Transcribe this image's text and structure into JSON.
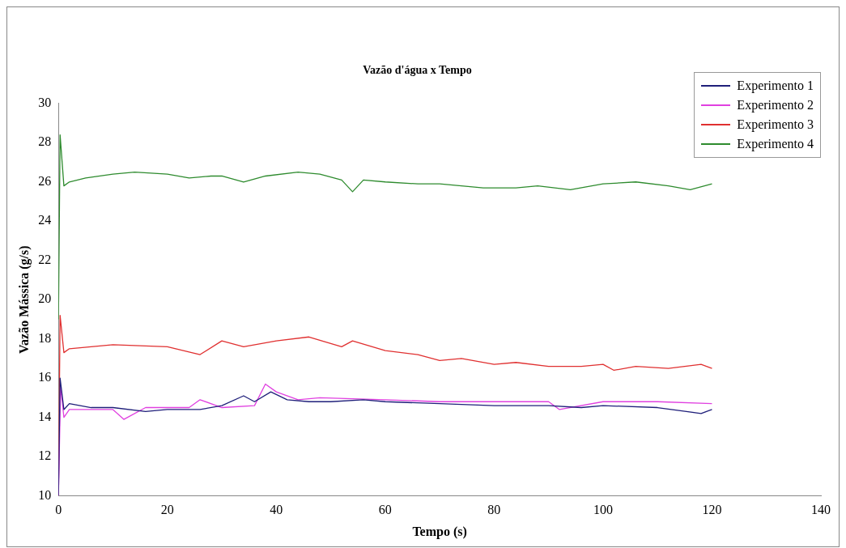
{
  "chart_data": {
    "type": "line",
    "title": "Vazão d'água x Tempo",
    "xlabel": "Tempo (s)",
    "ylabel": "Vazão Mássica (g/s)",
    "xlim": [
      0,
      140
    ],
    "xticks": [
      0,
      20,
      40,
      60,
      80,
      100,
      120,
      140
    ],
    "ylim": [
      10,
      30
    ],
    "yticks": [
      10,
      12,
      14,
      16,
      18,
      20,
      22,
      24,
      26,
      28,
      30
    ],
    "grid": false,
    "legend": "top right",
    "marker": "none",
    "line_style": "solid",
    "series": [
      {
        "name": "Experimento 1",
        "color": "#1f1f7a",
        "x": [
          0,
          0.3,
          1,
          2,
          6,
          10,
          16,
          20,
          26,
          30,
          34,
          36,
          39,
          42,
          46,
          50,
          56,
          60,
          70,
          80,
          90,
          96,
          100,
          110,
          118,
          120
        ],
        "values": [
          10,
          16,
          14.4,
          14.7,
          14.5,
          14.5,
          14.3,
          14.4,
          14.4,
          14.6,
          15.1,
          14.8,
          15.3,
          14.9,
          14.8,
          14.8,
          14.9,
          14.8,
          14.7,
          14.6,
          14.6,
          14.5,
          14.6,
          14.5,
          14.2,
          14.4
        ]
      },
      {
        "name": "Experimento 2",
        "color": "#e040e0",
        "x": [
          0,
          0.4,
          1,
          2,
          10,
          12,
          16,
          24,
          26,
          30,
          36,
          38,
          40,
          44,
          48,
          60,
          70,
          80,
          90,
          92,
          100,
          110,
          120
        ],
        "values": [
          10,
          15.6,
          14,
          14.4,
          14.4,
          13.9,
          14.5,
          14.5,
          14.9,
          14.5,
          14.6,
          15.7,
          15.3,
          14.9,
          15,
          14.9,
          14.8,
          14.8,
          14.8,
          14.4,
          14.8,
          14.8,
          14.7
        ]
      },
      {
        "name": "Experimento 3",
        "color": "#e03030",
        "x": [
          0,
          0.3,
          1,
          2,
          10,
          20,
          26,
          30,
          34,
          40,
          46,
          52,
          54,
          60,
          66,
          70,
          74,
          80,
          84,
          90,
          96,
          100,
          102,
          106,
          112,
          118,
          120
        ],
        "values": [
          10,
          19.2,
          17.3,
          17.5,
          17.7,
          17.6,
          17.2,
          17.9,
          17.6,
          17.9,
          18.1,
          17.6,
          17.9,
          17.4,
          17.2,
          16.9,
          17,
          16.7,
          16.8,
          16.6,
          16.6,
          16.7,
          16.4,
          16.6,
          16.5,
          16.7,
          16.5
        ]
      },
      {
        "name": "Experimento 4",
        "color": "#2e8b2e",
        "x": [
          0,
          0.3,
          1,
          2,
          5,
          10,
          14,
          20,
          24,
          28,
          30,
          34,
          38,
          44,
          48,
          52,
          54,
          56,
          60,
          66,
          70,
          74,
          78,
          84,
          88,
          94,
          100,
          106,
          112,
          116,
          120
        ],
        "values": [
          19,
          28.4,
          25.8,
          26,
          26.2,
          26.4,
          26.5,
          26.4,
          26.2,
          26.3,
          26.3,
          26,
          26.3,
          26.5,
          26.4,
          26.1,
          25.5,
          26.1,
          26,
          25.9,
          25.9,
          25.8,
          25.7,
          25.7,
          25.8,
          25.6,
          25.9,
          26,
          25.8,
          25.6,
          25.9
        ]
      }
    ]
  }
}
